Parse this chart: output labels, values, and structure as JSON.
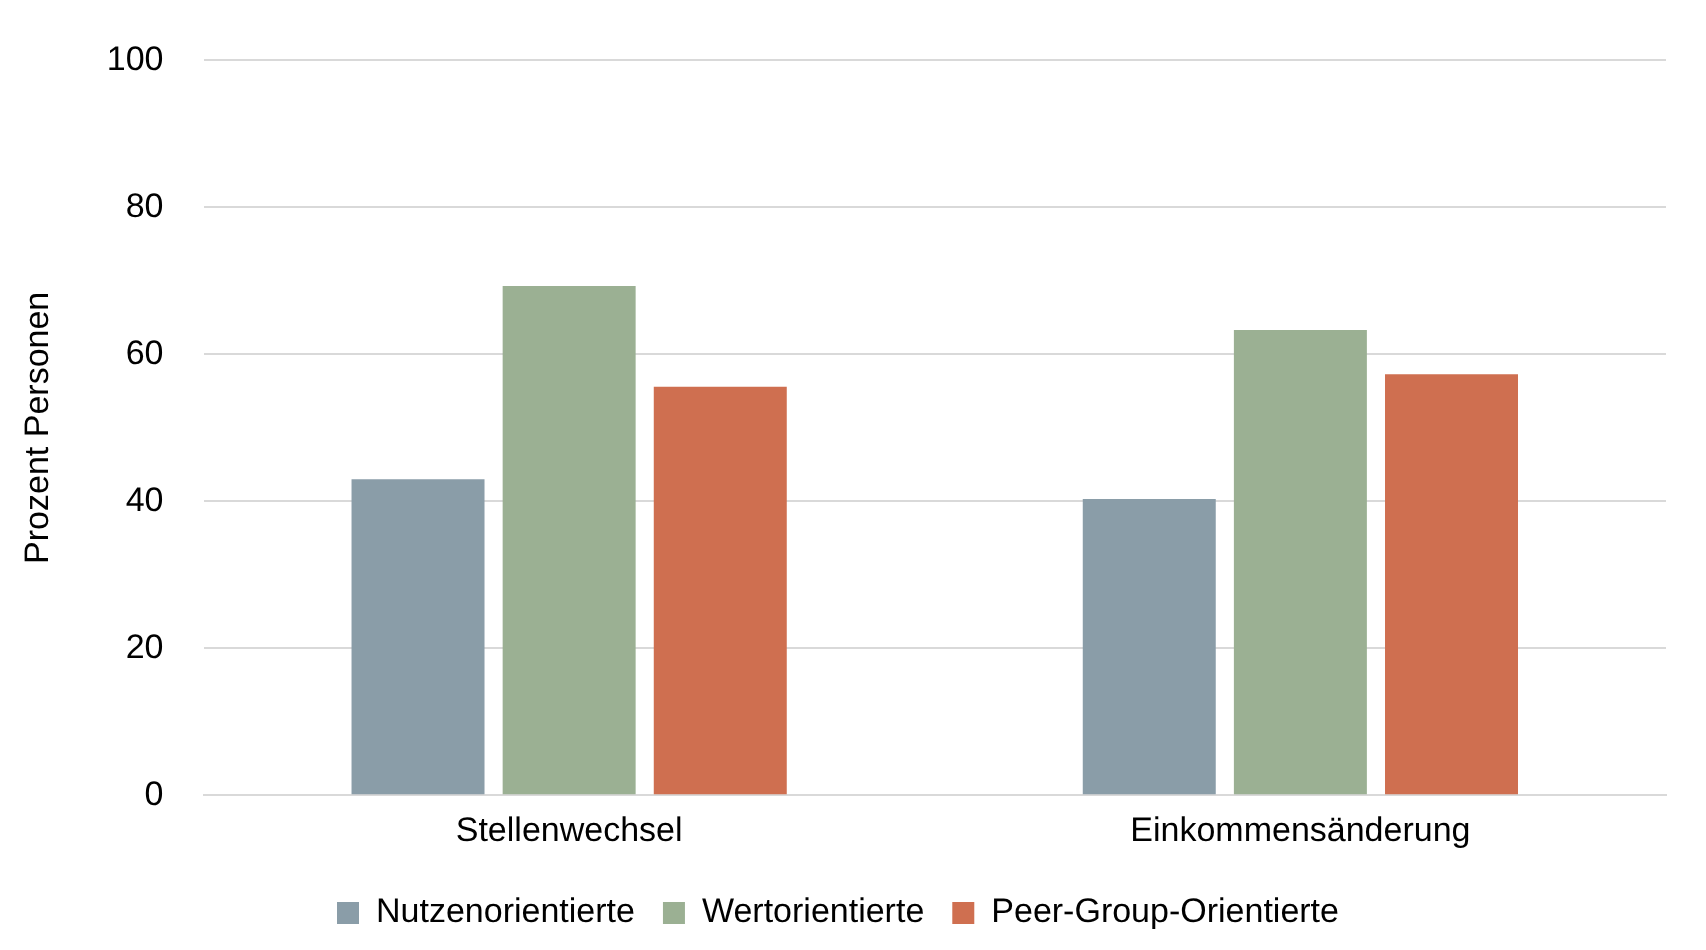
{
  "chart_data": {
    "type": "bar",
    "ylabel": "Prozent Personen",
    "categories": [
      "Stellenwechsel",
      "Einkommensänderung"
    ],
    "series": [
      {
        "name": "Nutzenorientierte",
        "color": "#8a9da8",
        "values": [
          43,
          40.3
        ]
      },
      {
        "name": "Wertorientierte",
        "color": "#9bb093",
        "values": [
          69.3,
          63.3
        ]
      },
      {
        "name": "Peer-Group-Orientierte",
        "color": "#cf6f50",
        "values": [
          55.6,
          57.3
        ]
      }
    ],
    "ylim": [
      0,
      100
    ],
    "yticks": [
      0,
      20,
      40,
      60,
      80,
      100
    ],
    "grid": "y",
    "legend": "bottom"
  }
}
